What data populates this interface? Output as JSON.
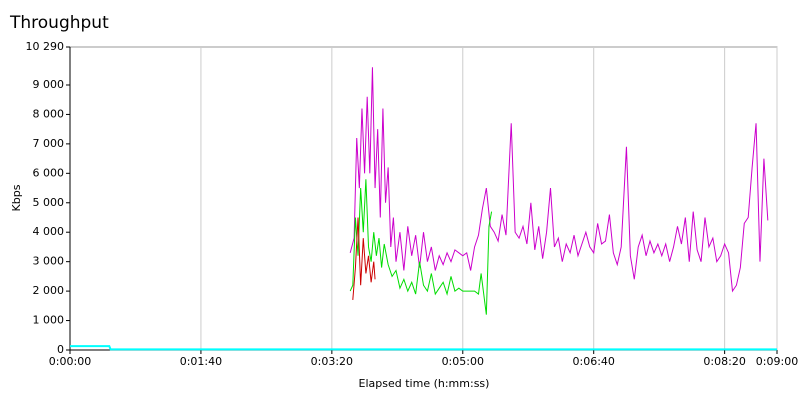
{
  "chart_data": {
    "type": "line",
    "title": "Throughput",
    "xlabel": "Elapsed time (h:mm:ss)",
    "ylabel": "Kbps",
    "xlim": [
      0,
      540
    ],
    "xticks": [
      {
        "value": 0,
        "label": "0:00:00"
      },
      {
        "value": 100,
        "label": "0:01:40"
      },
      {
        "value": 200,
        "label": "0:03:20"
      },
      {
        "value": 300,
        "label": "0:05:00"
      },
      {
        "value": 400,
        "label": "0:06:40"
      },
      {
        "value": 500,
        "label": "0:08:20"
      },
      {
        "value": 540,
        "label": "0:09:00"
      }
    ],
    "ylim": [
      0,
      10290
    ],
    "yticks": [
      0,
      {
        "value": 1000,
        "label": "1 000"
      },
      {
        "value": 2000,
        "label": "2 000"
      },
      {
        "value": 3000,
        "label": "3 000"
      },
      {
        "value": 4000,
        "label": "4 000"
      },
      {
        "value": 5000,
        "label": "5 000"
      },
      {
        "value": 6000,
        "label": "6 000"
      },
      {
        "value": 7000,
        "label": "7 000"
      },
      {
        "value": 8000,
        "label": "8 000"
      },
      {
        "value": 9000,
        "label": "9 000"
      },
      {
        "value": 10290,
        "label": "10 290"
      }
    ],
    "xgrid": true,
    "series": [
      {
        "color": "#00ffff",
        "x": [
          0,
          30,
          31,
          540
        ],
        "values": [
          130,
          130,
          20,
          20
        ]
      },
      {
        "color": "#cc00cc",
        "x": [
          214,
          217,
          219,
          221,
          223,
          225,
          227,
          229,
          231,
          233,
          235,
          237,
          239,
          241,
          243,
          245,
          247,
          249,
          252,
          255,
          258,
          261,
          264,
          267,
          270,
          273,
          276,
          279,
          282,
          285,
          288,
          291,
          294,
          297,
          300,
          303,
          306,
          309,
          312,
          315,
          318,
          321,
          324,
          327,
          330,
          333,
          337,
          340,
          343,
          346,
          349,
          352,
          355,
          358,
          361,
          364,
          367,
          370,
          373,
          376,
          379,
          382,
          385,
          388,
          391,
          394,
          397,
          400,
          403,
          406,
          409,
          412,
          415,
          418,
          421,
          425,
          428,
          431,
          434,
          437,
          440,
          443,
          446,
          449,
          452,
          455,
          458,
          461,
          464,
          467,
          470,
          473,
          476,
          479,
          482,
          485,
          488,
          491,
          494,
          497,
          500,
          503,
          506,
          509,
          512,
          515,
          518,
          521,
          524,
          527,
          530,
          533
        ],
        "values": [
          3300,
          3800,
          7200,
          5500,
          8200,
          6000,
          8600,
          6000,
          9600,
          5500,
          7500,
          4500,
          8200,
          5000,
          6200,
          3500,
          4500,
          3000,
          4000,
          2700,
          4200,
          3200,
          3900,
          2800,
          4000,
          3000,
          3500,
          2700,
          3200,
          2900,
          3300,
          3000,
          3400,
          3300,
          3200,
          3300,
          2700,
          3500,
          3900,
          4800,
          5500,
          4200,
          4000,
          3700,
          4600,
          3900,
          7700,
          4000,
          3800,
          4200,
          3600,
          5000,
          3400,
          4200,
          3100,
          4000,
          5500,
          3500,
          3800,
          3000,
          3600,
          3300,
          3900,
          3200,
          3600,
          4000,
          3500,
          3300,
          4300,
          3600,
          3700,
          4600,
          3300,
          2900,
          3500,
          6900,
          3200,
          2400,
          3500,
          3900,
          3200,
          3700,
          3300,
          3600,
          3200,
          3600,
          3000,
          3500,
          4200,
          3600,
          4500,
          3000,
          4700,
          3400,
          3000,
          4500,
          3500,
          3800,
          3000,
          3200,
          3600,
          3300,
          2000,
          2200,
          2800,
          4300,
          4500,
          6200,
          7700,
          3000,
          6500,
          4400
        ]
      },
      {
        "color": "#00dd00",
        "x": [
          214,
          216,
          218,
          220,
          222,
          224,
          226,
          228,
          230,
          232,
          234,
          236,
          238,
          240,
          243,
          246,
          249,
          252,
          255,
          258,
          261,
          264,
          267,
          270,
          273,
          276,
          279,
          282,
          285,
          288,
          291,
          294,
          297,
          300,
          303,
          306,
          309,
          312,
          314,
          316,
          318,
          320,
          322
        ],
        "values": [
          2000,
          2200,
          4500,
          3200,
          5500,
          4000,
          5800,
          3500,
          3000,
          4000,
          3200,
          3800,
          2800,
          3600,
          2900,
          2500,
          2700,
          2100,
          2400,
          2000,
          2300,
          1900,
          3000,
          2200,
          2000,
          2600,
          1900,
          2100,
          2300,
          1900,
          2500,
          2000,
          2100,
          2000,
          2000,
          2000,
          2000,
          1900,
          2600,
          1900,
          1200,
          4200,
          4700
        ]
      },
      {
        "color": "#cc0000",
        "x": [
          216,
          218,
          220,
          222,
          224,
          226,
          228,
          230,
          232,
          233
        ],
        "values": [
          1700,
          2800,
          4500,
          2200,
          3800,
          2600,
          3200,
          2300,
          3000,
          2400
        ]
      }
    ]
  }
}
